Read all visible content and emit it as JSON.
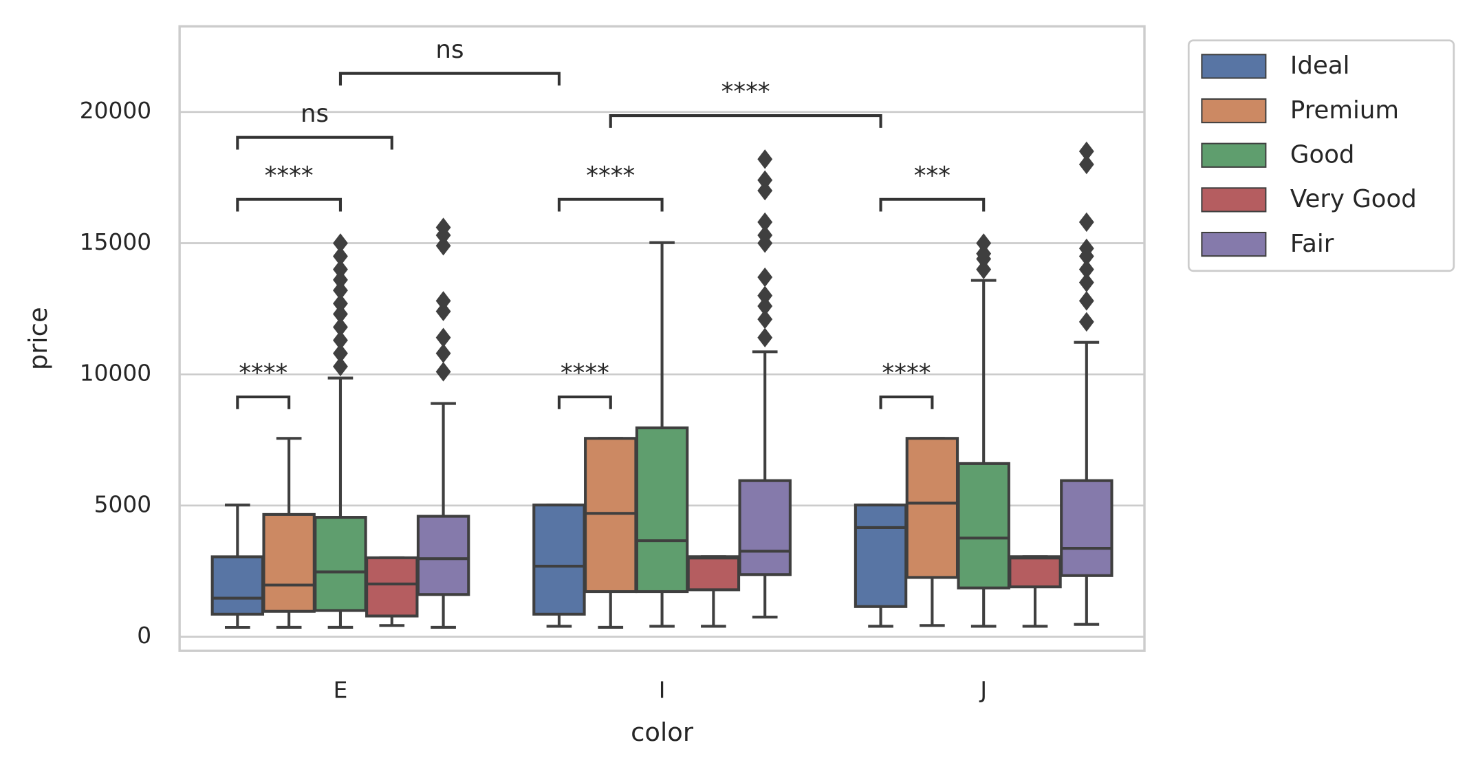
{
  "chart_data": {
    "type": "box",
    "x_label": "color",
    "y_label": "price",
    "categories": [
      "E",
      "I",
      "J"
    ],
    "ylim": [
      -538,
      23262
    ],
    "yticks": [
      0,
      5000,
      10000,
      15000,
      20000
    ],
    "grid": true,
    "legend": "outside-upper-right",
    "series": [
      {
        "name": "Ideal",
        "color": "#5875a4",
        "boxes": [
          {
            "whislo": 358,
            "q1": 860,
            "med": 1470,
            "q3": 3047,
            "whishi": 5018,
            "fliers": []
          },
          {
            "whislo": 400,
            "q1": 860,
            "med": 2690,
            "q3": 5020,
            "whishi": 5020,
            "fliers": []
          },
          {
            "whislo": 400,
            "q1": 1150,
            "med": 4160,
            "q3": 5020,
            "whishi": 5020,
            "fliers": []
          }
        ]
      },
      {
        "name": "Premium",
        "color": "#cc8963",
        "boxes": [
          {
            "whislo": 360,
            "q1": 968,
            "med": 1970,
            "q3": 4660,
            "whishi": 7560,
            "fliers": []
          },
          {
            "whislo": 360,
            "q1": 1720,
            "med": 4700,
            "q3": 7560,
            "whishi": 7560,
            "fliers": []
          },
          {
            "whislo": 430,
            "q1": 2260,
            "med": 5090,
            "q3": 7560,
            "whishi": 7560,
            "fliers": []
          }
        ]
      },
      {
        "name": "Good",
        "color": "#5f9e6e",
        "boxes": [
          {
            "whislo": 360,
            "q1": 1000,
            "med": 2470,
            "q3": 4550,
            "whishi": 9860,
            "fliers": [
              10300,
              10800,
              11300,
              11800,
              12300,
              12700,
              13200,
              13600,
              14000,
              14500,
              15000
            ]
          },
          {
            "whislo": 400,
            "q1": 1720,
            "med": 3660,
            "q3": 7960,
            "whishi": 15020,
            "fliers": []
          },
          {
            "whislo": 400,
            "q1": 1860,
            "med": 3760,
            "q3": 6600,
            "whishi": 13580,
            "fliers": [
              14000,
              14400,
              14600,
              15000
            ]
          }
        ]
      },
      {
        "name": "Very Good",
        "color": "#b55d60",
        "boxes": [
          {
            "whislo": 430,
            "q1": 790,
            "med": 2010,
            "q3": 3010,
            "whishi": 3010,
            "fliers": []
          },
          {
            "whislo": 400,
            "q1": 1790,
            "med": 3000,
            "q3": 3050,
            "whishi": 3050,
            "fliers": []
          },
          {
            "whislo": 400,
            "q1": 1900,
            "med": 3000,
            "q3": 3050,
            "whishi": 3050,
            "fliers": []
          }
        ]
      },
      {
        "name": "Fair",
        "color": "#857aab",
        "boxes": [
          {
            "whislo": 360,
            "q1": 1610,
            "med": 2975,
            "q3": 4590,
            "whishi": 8890,
            "fliers": [
              10100,
              10800,
              11400,
              12400,
              12800,
              14900,
              15300,
              15600
            ]
          },
          {
            "whislo": 750,
            "q1": 2370,
            "med": 3260,
            "q3": 5950,
            "whishi": 10860,
            "fliers": [
              11400,
              12100,
              12600,
              13000,
              13700,
              15000,
              15300,
              15800,
              17000,
              17400,
              18200
            ]
          },
          {
            "whislo": 470,
            "q1": 2330,
            "med": 3370,
            "q3": 5950,
            "whishi": 11220,
            "fliers": [
              12000,
              12800,
              13500,
              14000,
              14500,
              14800,
              15800,
              18000,
              18500
            ]
          }
        ]
      }
    ],
    "annotations": [
      {
        "text": "****",
        "from": [
          "E",
          "Ideal"
        ],
        "to": [
          "E",
          "Premium"
        ],
        "y": 9140
      },
      {
        "text": "****",
        "from": [
          "E",
          "Ideal"
        ],
        "to": [
          "E",
          "Good"
        ],
        "y": 16670
      },
      {
        "text": "ns",
        "from": [
          "E",
          "Ideal"
        ],
        "to": [
          "E",
          "Very Good"
        ],
        "y": 19030
      },
      {
        "text": "ns",
        "from": [
          "E",
          "Good"
        ],
        "to": [
          "I",
          "Ideal"
        ],
        "y": 21470
      },
      {
        "text": "****",
        "from": [
          "I",
          "Ideal"
        ],
        "to": [
          "I",
          "Premium"
        ],
        "y": 9140
      },
      {
        "text": "****",
        "from": [
          "I",
          "Ideal"
        ],
        "to": [
          "I",
          "Good"
        ],
        "y": 16670
      },
      {
        "text": "****",
        "from": [
          "I",
          "Premium"
        ],
        "to": [
          "J",
          "Ideal"
        ],
        "y": 19860
      },
      {
        "text": "****",
        "from": [
          "J",
          "Ideal"
        ],
        "to": [
          "J",
          "Premium"
        ],
        "y": 9140
      },
      {
        "text": "***",
        "from": [
          "J",
          "Ideal"
        ],
        "to": [
          "J",
          "Good"
        ],
        "y": 16670
      }
    ]
  }
}
